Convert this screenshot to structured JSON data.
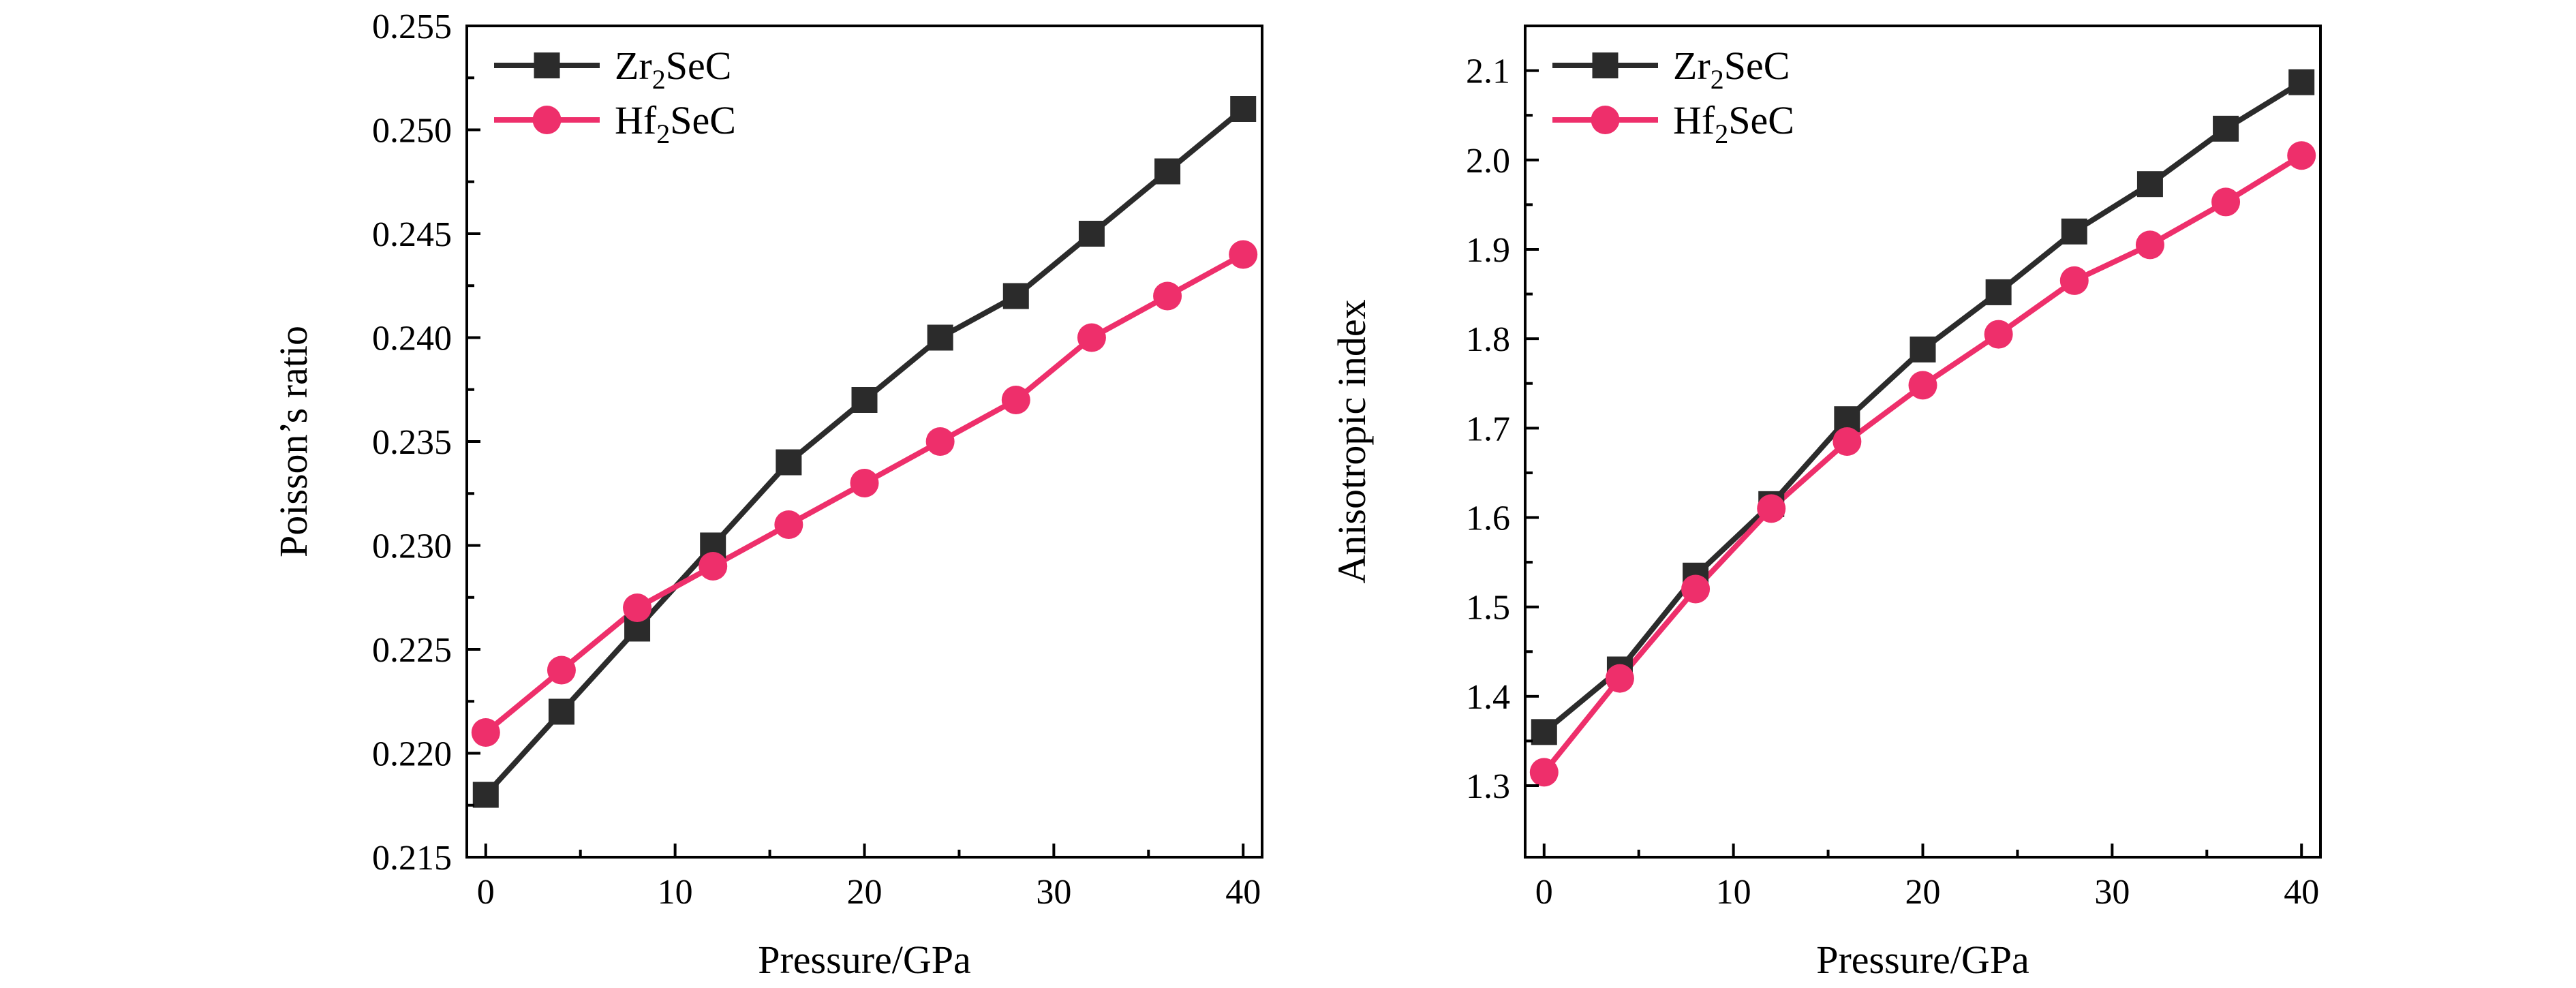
{
  "colors": {
    "zr": "#2b2b2b",
    "hf": "#ee2f6b",
    "axis": "#000000",
    "background": "#ffffff"
  },
  "legend_items": [
    {
      "series": "zr",
      "base": "Zr",
      "sub": "2",
      "rest": "SeC",
      "marker": "square"
    },
    {
      "series": "hf",
      "base": "Hf",
      "sub": "2",
      "rest": "SeC",
      "marker": "circle"
    }
  ],
  "chart_data": [
    {
      "type": "line",
      "xlabel": "Pressure/GPa",
      "ylabel": "Poisson’s ratio",
      "xlim": [
        -1,
        41
      ],
      "ylim": [
        0.215,
        0.255
      ],
      "xticks": [
        "0",
        "10",
        "20",
        "30",
        "40"
      ],
      "xtick_values": [
        0,
        10,
        20,
        30,
        40
      ],
      "yticks": [
        "0.215",
        "0.220",
        "0.225",
        "0.230",
        "0.235",
        "0.240",
        "0.245",
        "0.250",
        "0.255"
      ],
      "ytick_values": [
        0.215,
        0.22,
        0.225,
        0.23,
        0.235,
        0.24,
        0.245,
        0.25,
        0.255
      ],
      "legend_position": "top-left",
      "grid": false,
      "x": [
        0,
        4,
        8,
        12,
        16,
        20,
        24,
        28,
        32,
        36,
        40
      ],
      "series": [
        {
          "name": "Zr2SeC",
          "key": "zr",
          "marker": "square",
          "values": [
            0.218,
            0.222,
            0.226,
            0.23,
            0.234,
            0.237,
            0.24,
            0.242,
            0.245,
            0.248,
            0.251
          ]
        },
        {
          "name": "Hf2SeC",
          "key": "hf",
          "marker": "circle",
          "values": [
            0.221,
            0.224,
            0.227,
            0.229,
            0.231,
            0.233,
            0.235,
            0.237,
            0.24,
            0.242,
            0.244
          ]
        }
      ]
    },
    {
      "type": "line",
      "xlabel": "Pressure/GPa",
      "ylabel": "Anisotropic index",
      "xlim": [
        -1,
        41
      ],
      "ylim": [
        1.22,
        2.15
      ],
      "xticks": [
        "0",
        "10",
        "20",
        "30",
        "40"
      ],
      "xtick_values": [
        0,
        10,
        20,
        30,
        40
      ],
      "yticks": [
        "1.3",
        "1.4",
        "1.5",
        "1.6",
        "1.7",
        "1.8",
        "1.9",
        "2.0",
        "2.1"
      ],
      "ytick_values": [
        1.3,
        1.4,
        1.5,
        1.6,
        1.7,
        1.8,
        1.9,
        2.0,
        2.1
      ],
      "legend_position": "top-left",
      "grid": false,
      "x": [
        0,
        4,
        8,
        12,
        16,
        20,
        24,
        28,
        32,
        36,
        40
      ],
      "series": [
        {
          "name": "Zr2SeC",
          "key": "zr",
          "marker": "square",
          "values": [
            1.36,
            1.43,
            1.535,
            1.615,
            1.71,
            1.788,
            1.852,
            1.92,
            1.973,
            2.035,
            2.087
          ]
        },
        {
          "name": "Hf2SeC",
          "key": "hf",
          "marker": "circle",
          "values": [
            1.315,
            1.42,
            1.52,
            1.61,
            1.685,
            1.748,
            1.805,
            1.865,
            1.905,
            1.953,
            2.005
          ]
        }
      ]
    }
  ]
}
